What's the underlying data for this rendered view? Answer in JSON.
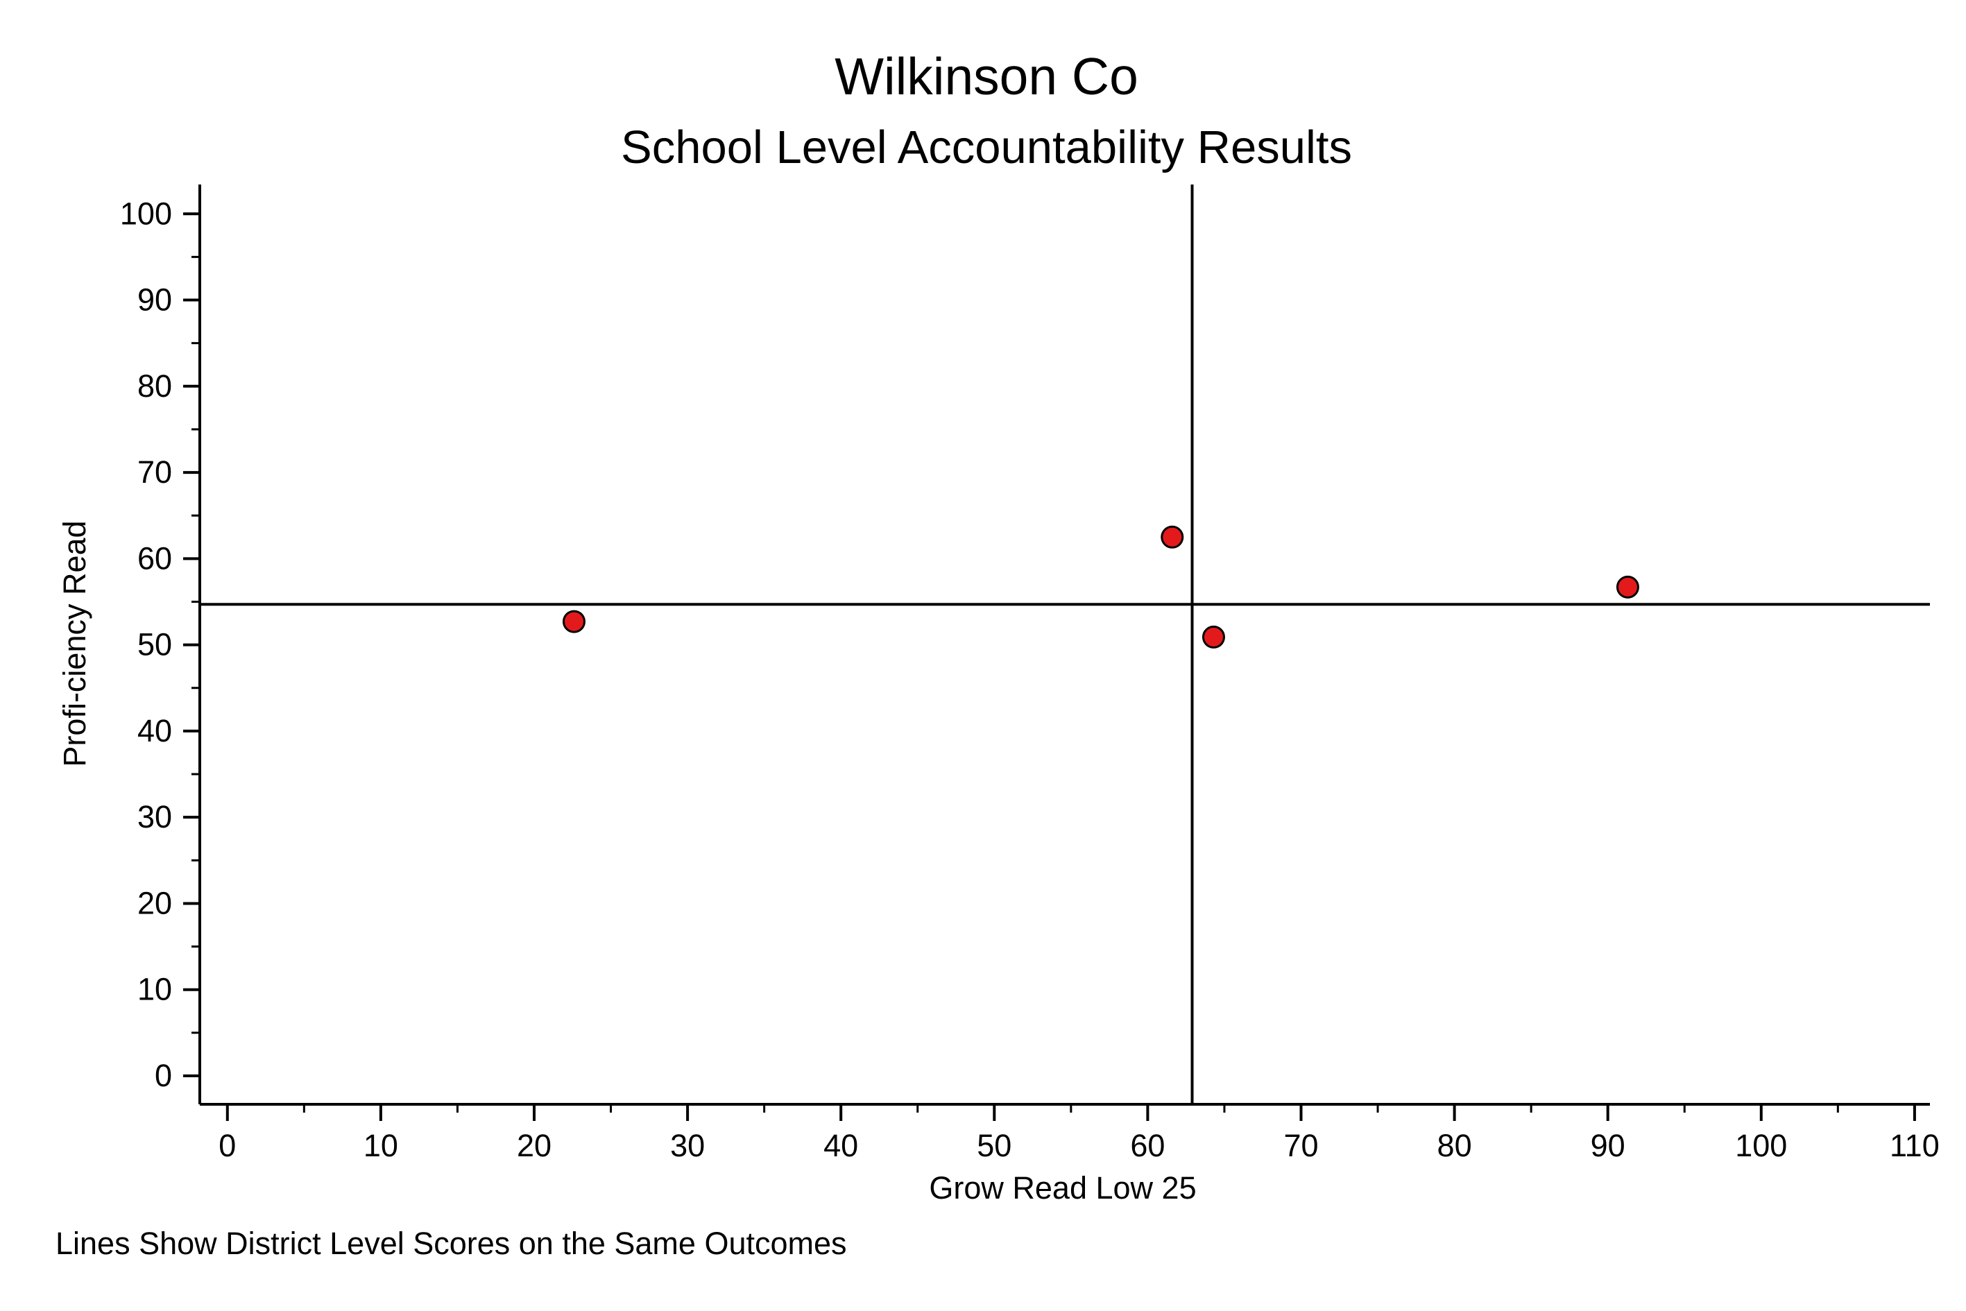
{
  "chart_data": {
    "type": "scatter",
    "title": "Wilkinson Co",
    "subtitle": "School Level Accountability Results",
    "xlabel": "Grow Read Low 25",
    "ylabel": "Profi-ciency Read",
    "note": "Lines Show District Level Scores on the Same Outcomes",
    "xlim": [
      -1.8,
      111
    ],
    "ylim": [
      -3.3,
      103.4
    ],
    "x_ticks": [
      0,
      10,
      20,
      30,
      40,
      50,
      60,
      70,
      80,
      90,
      100,
      110
    ],
    "y_ticks": [
      0,
      10,
      20,
      30,
      40,
      50,
      60,
      70,
      80,
      90,
      100
    ],
    "x_tick_labels": [
      "0",
      "10",
      "20",
      "30",
      "40",
      "50",
      "60",
      "70",
      "80",
      "90",
      "100",
      "110"
    ],
    "y_tick_labels": [
      "0",
      "10",
      "20",
      "30",
      "40",
      "50",
      "60",
      "70",
      "80",
      "90",
      "100"
    ],
    "grid": false,
    "reference_lines": {
      "x": 62.9,
      "y": 54.7
    },
    "series": [
      {
        "points": [
          {
            "x": 22.6,
            "y": 52.7
          },
          {
            "x": 61.6,
            "y": 62.5
          },
          {
            "x": 64.3,
            "y": 50.9
          },
          {
            "x": 91.3,
            "y": 56.7
          }
        ]
      }
    ],
    "colors": {
      "marker_fill": "#e31a1c",
      "marker_stroke": "#000000",
      "line": "#000000",
      "text": "#000000",
      "background": "#ffffff"
    }
  }
}
